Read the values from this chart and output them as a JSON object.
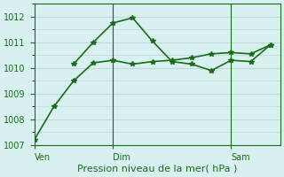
{
  "title": "",
  "xlabel": "Pression niveau de la mer( hPa )",
  "ylabel": "",
  "bg_color": "#d8f0f0",
  "grid_color": "#c0d8d8",
  "line_color": "#1a6b1a",
  "ylim": [
    1007,
    1012.5
  ],
  "yticks": [
    1007,
    1008,
    1009,
    1010,
    1011,
    1012
  ],
  "vlines": [
    8,
    20
  ],
  "day_labels": [
    "Ven",
    "Dim",
    "Sam"
  ],
  "day_positions": [
    0,
    8,
    20
  ],
  "series1_x": [
    0,
    2,
    4,
    6,
    8,
    10,
    12,
    14,
    16,
    18,
    20,
    22,
    24
  ],
  "series1_y": [
    1007.2,
    1008.5,
    1009.5,
    1010.2,
    1010.3,
    1010.15,
    1010.25,
    1010.3,
    1010.4,
    1010.55,
    1010.6,
    1010.55,
    1010.9
  ],
  "series2_x": [
    4,
    6,
    8,
    10,
    12,
    14,
    16,
    18,
    20,
    22,
    24
  ],
  "series2_y": [
    1010.15,
    1011.0,
    1011.75,
    1011.95,
    1011.05,
    1010.25,
    1010.15,
    1009.9,
    1010.3,
    1010.25,
    1010.9
  ],
  "marker": "*",
  "markersize": 4,
  "linewidth": 1.2
}
